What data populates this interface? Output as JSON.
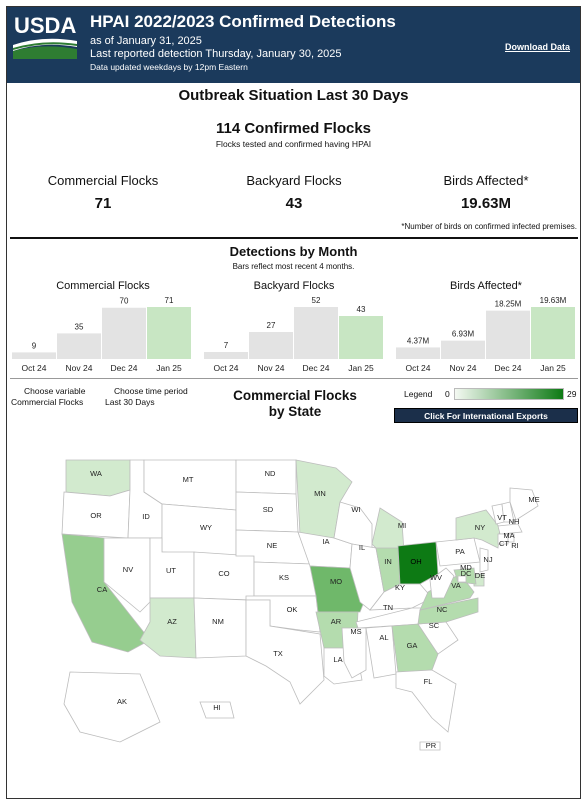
{
  "header": {
    "logo_text": "USDA",
    "title": "HPAI 2022/2023 Confirmed Detections",
    "as_of": "as of January 31, 2025",
    "last_reported": "Last reported detection Thursday, January 30, 2025",
    "update_note": "Data updated weekdays by 12pm Eastern",
    "download_label": "Download Data",
    "colors": {
      "header_bg": "#1b3a5c"
    }
  },
  "summary": {
    "section_title": "Outbreak Situation Last 30 Days",
    "confirmed_title": "114 Confirmed Flocks",
    "confirmed_sub": "Flocks tested and confirmed having HPAI",
    "kpis": [
      {
        "label": "Commercial Flocks",
        "value": "71"
      },
      {
        "label": "Backyard Flocks",
        "value": "43"
      },
      {
        "label": "Birds Affected*",
        "value": "19.63M"
      }
    ],
    "footnote": "*Number of birds on confirmed infected premises."
  },
  "by_month": {
    "title": "Detections by Month",
    "subtitle": "Bars reflect most recent 4 months."
  },
  "controls": {
    "variable_label": "Choose variable",
    "variable_value": "Commercial Flocks",
    "period_label": "Choose time period",
    "period_value": "Last 30 Days"
  },
  "map": {
    "title_line1": "Commercial Flocks",
    "title_line2": "by State",
    "legend_label": "Legend",
    "legend_min": "0",
    "legend_max": "29",
    "intl_button": "Click For International Exports",
    "colors": {
      "low": "#f4f9f2",
      "high": "#0d7a14"
    }
  },
  "chart_data": [
    {
      "type": "bar",
      "title": "Commercial Flocks",
      "categories": [
        "Oct 24",
        "Nov 24",
        "Dec 24",
        "Jan 25"
      ],
      "values": [
        9,
        35,
        70,
        71
      ],
      "labels": [
        "9",
        "35",
        "70",
        "71"
      ]
    },
    {
      "type": "bar",
      "title": "Backyard Flocks",
      "categories": [
        "Oct 24",
        "Nov 24",
        "Dec 24",
        "Jan 25"
      ],
      "values": [
        7,
        27,
        52,
        43
      ],
      "labels": [
        "7",
        "27",
        "52",
        "43"
      ]
    },
    {
      "type": "bar",
      "title": "Birds Affected*",
      "categories": [
        "Oct 24",
        "Nov 24",
        "Dec 24",
        "Jan 25"
      ],
      "values": [
        4.37,
        6.93,
        18.25,
        19.63
      ],
      "labels": [
        "4.37M",
        "6.93M",
        "18.25M",
        "19.63M"
      ]
    },
    {
      "type": "heatmap",
      "title": "Commercial Flocks by State",
      "legend_range": [
        0,
        29
      ],
      "states": [
        {
          "abbr": "WA",
          "shade": 2
        },
        {
          "abbr": "OR",
          "shade": 0
        },
        {
          "abbr": "CA",
          "shade": 4
        },
        {
          "abbr": "ID",
          "shade": 0
        },
        {
          "abbr": "NV",
          "shade": 0
        },
        {
          "abbr": "MT",
          "shade": 0
        },
        {
          "abbr": "WY",
          "shade": 0
        },
        {
          "abbr": "UT",
          "shade": 0
        },
        {
          "abbr": "AZ",
          "shade": 2
        },
        {
          "abbr": "CO",
          "shade": 0
        },
        {
          "abbr": "NM",
          "shade": 0
        },
        {
          "abbr": "ND",
          "shade": 0
        },
        {
          "abbr": "SD",
          "shade": 0
        },
        {
          "abbr": "NE",
          "shade": 0
        },
        {
          "abbr": "KS",
          "shade": 0
        },
        {
          "abbr": "OK",
          "shade": 0
        },
        {
          "abbr": "TX",
          "shade": 0
        },
        {
          "abbr": "MN",
          "shade": 2
        },
        {
          "abbr": "IA",
          "shade": 0
        },
        {
          "abbr": "MO",
          "shade": 5
        },
        {
          "abbr": "AR",
          "shade": 3
        },
        {
          "abbr": "LA",
          "shade": 0
        },
        {
          "abbr": "WI",
          "shade": 0
        },
        {
          "abbr": "IL",
          "shade": 0
        },
        {
          "abbr": "MI",
          "shade": 2
        },
        {
          "abbr": "IN",
          "shade": 3
        },
        {
          "abbr": "OH",
          "shade": 8
        },
        {
          "abbr": "KY",
          "shade": 0
        },
        {
          "abbr": "TN",
          "shade": 0
        },
        {
          "abbr": "MS",
          "shade": 0
        },
        {
          "abbr": "AL",
          "shade": 0
        },
        {
          "abbr": "GA",
          "shade": 3
        },
        {
          "abbr": "FL",
          "shade": 0
        },
        {
          "abbr": "SC",
          "shade": 0
        },
        {
          "abbr": "NC",
          "shade": 3
        },
        {
          "abbr": "VA",
          "shade": 3
        },
        {
          "abbr": "WV",
          "shade": 0
        },
        {
          "abbr": "PA",
          "shade": 0
        },
        {
          "abbr": "NY",
          "shade": 2
        },
        {
          "abbr": "VT",
          "shade": 0
        },
        {
          "abbr": "NH",
          "shade": 0
        },
        {
          "abbr": "ME",
          "shade": 0
        },
        {
          "abbr": "MA",
          "shade": 0
        },
        {
          "abbr": "CT",
          "shade": 0
        },
        {
          "abbr": "RI",
          "shade": 0
        },
        {
          "abbr": "NJ",
          "shade": 0
        },
        {
          "abbr": "DE",
          "shade": 2
        },
        {
          "abbr": "MD",
          "shade": 3
        },
        {
          "abbr": "DC",
          "shade": 0
        },
        {
          "abbr": "AK",
          "shade": 0
        },
        {
          "abbr": "HI",
          "shade": 0
        },
        {
          "abbr": "PR",
          "shade": 0
        }
      ]
    }
  ]
}
